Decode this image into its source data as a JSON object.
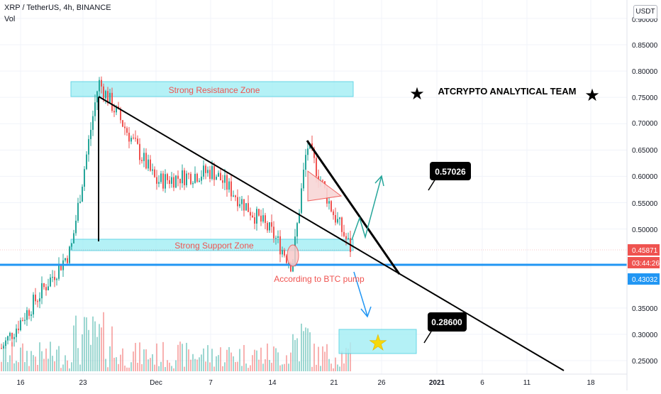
{
  "header": {
    "symbol_line": "XRP / TetherUS, 4h, BINANCE",
    "volume_label": "Vol"
  },
  "price_axis": {
    "currency_button": "USDT",
    "ticks": [
      "0.90000",
      "0.85000",
      "0.80000",
      "0.75000",
      "0.70000",
      "0.65000",
      "0.60000",
      "0.55000",
      "0.50000",
      "0.45871",
      "03:44:26",
      "0.43032",
      "0.35000",
      "0.30000",
      "0.25000"
    ]
  },
  "time_axis": {
    "ticks": [
      "16",
      "23",
      "Dec",
      "7",
      "14",
      "21",
      "26",
      "2021",
      "6",
      "11",
      "18"
    ]
  },
  "annotations": {
    "resistance_zone": "Strong Resistance Zone",
    "support_zone": "Strong Support Zone",
    "team_name": "ATCRYPTO ANALYTICAL TEAM",
    "btc_note": "According to BTC pump",
    "target_up": "0.57026",
    "target_down": "0.28600"
  },
  "colors": {
    "bull": "#26a69a",
    "bear": "#ef5350",
    "zone_fill": "#a7eff5",
    "zone_text": "#ef5350",
    "blue_line": "#2196f3",
    "price_badge": "#ef5350",
    "level_badge": "#2196f3"
  },
  "chart_data": {
    "type": "candlestick",
    "title": "XRP / TetherUS, 4h, BINANCE",
    "y_axis_range": [
      0.24,
      0.91
    ],
    "y_ticks": [
      0.25,
      0.3,
      0.35,
      0.5,
      0.55,
      0.6,
      0.65,
      0.7,
      0.75,
      0.8,
      0.85,
      0.9
    ],
    "current_price": 0.45871,
    "countdown": "03:44:26",
    "horizontal_level": 0.43032,
    "resistance_zone": [
      0.75,
      0.78
    ],
    "support_zone": [
      0.465,
      0.485
    ],
    "targets": [
      0.57026,
      0.286
    ],
    "key_points": [
      {
        "label": "16",
        "close": 0.27
      },
      {
        "label": "23",
        "close": 0.46
      },
      {
        "label": "peak",
        "high": 0.78
      },
      {
        "label": "Dec",
        "close": 0.59
      },
      {
        "label": "7",
        "close": 0.61
      },
      {
        "label": "14",
        "close": 0.49
      },
      {
        "label": "dip",
        "low": 0.43
      },
      {
        "label": "spike",
        "high": 0.66
      },
      {
        "label": "21",
        "close": 0.53
      },
      {
        "label": "last",
        "close": 0.45871
      }
    ]
  }
}
